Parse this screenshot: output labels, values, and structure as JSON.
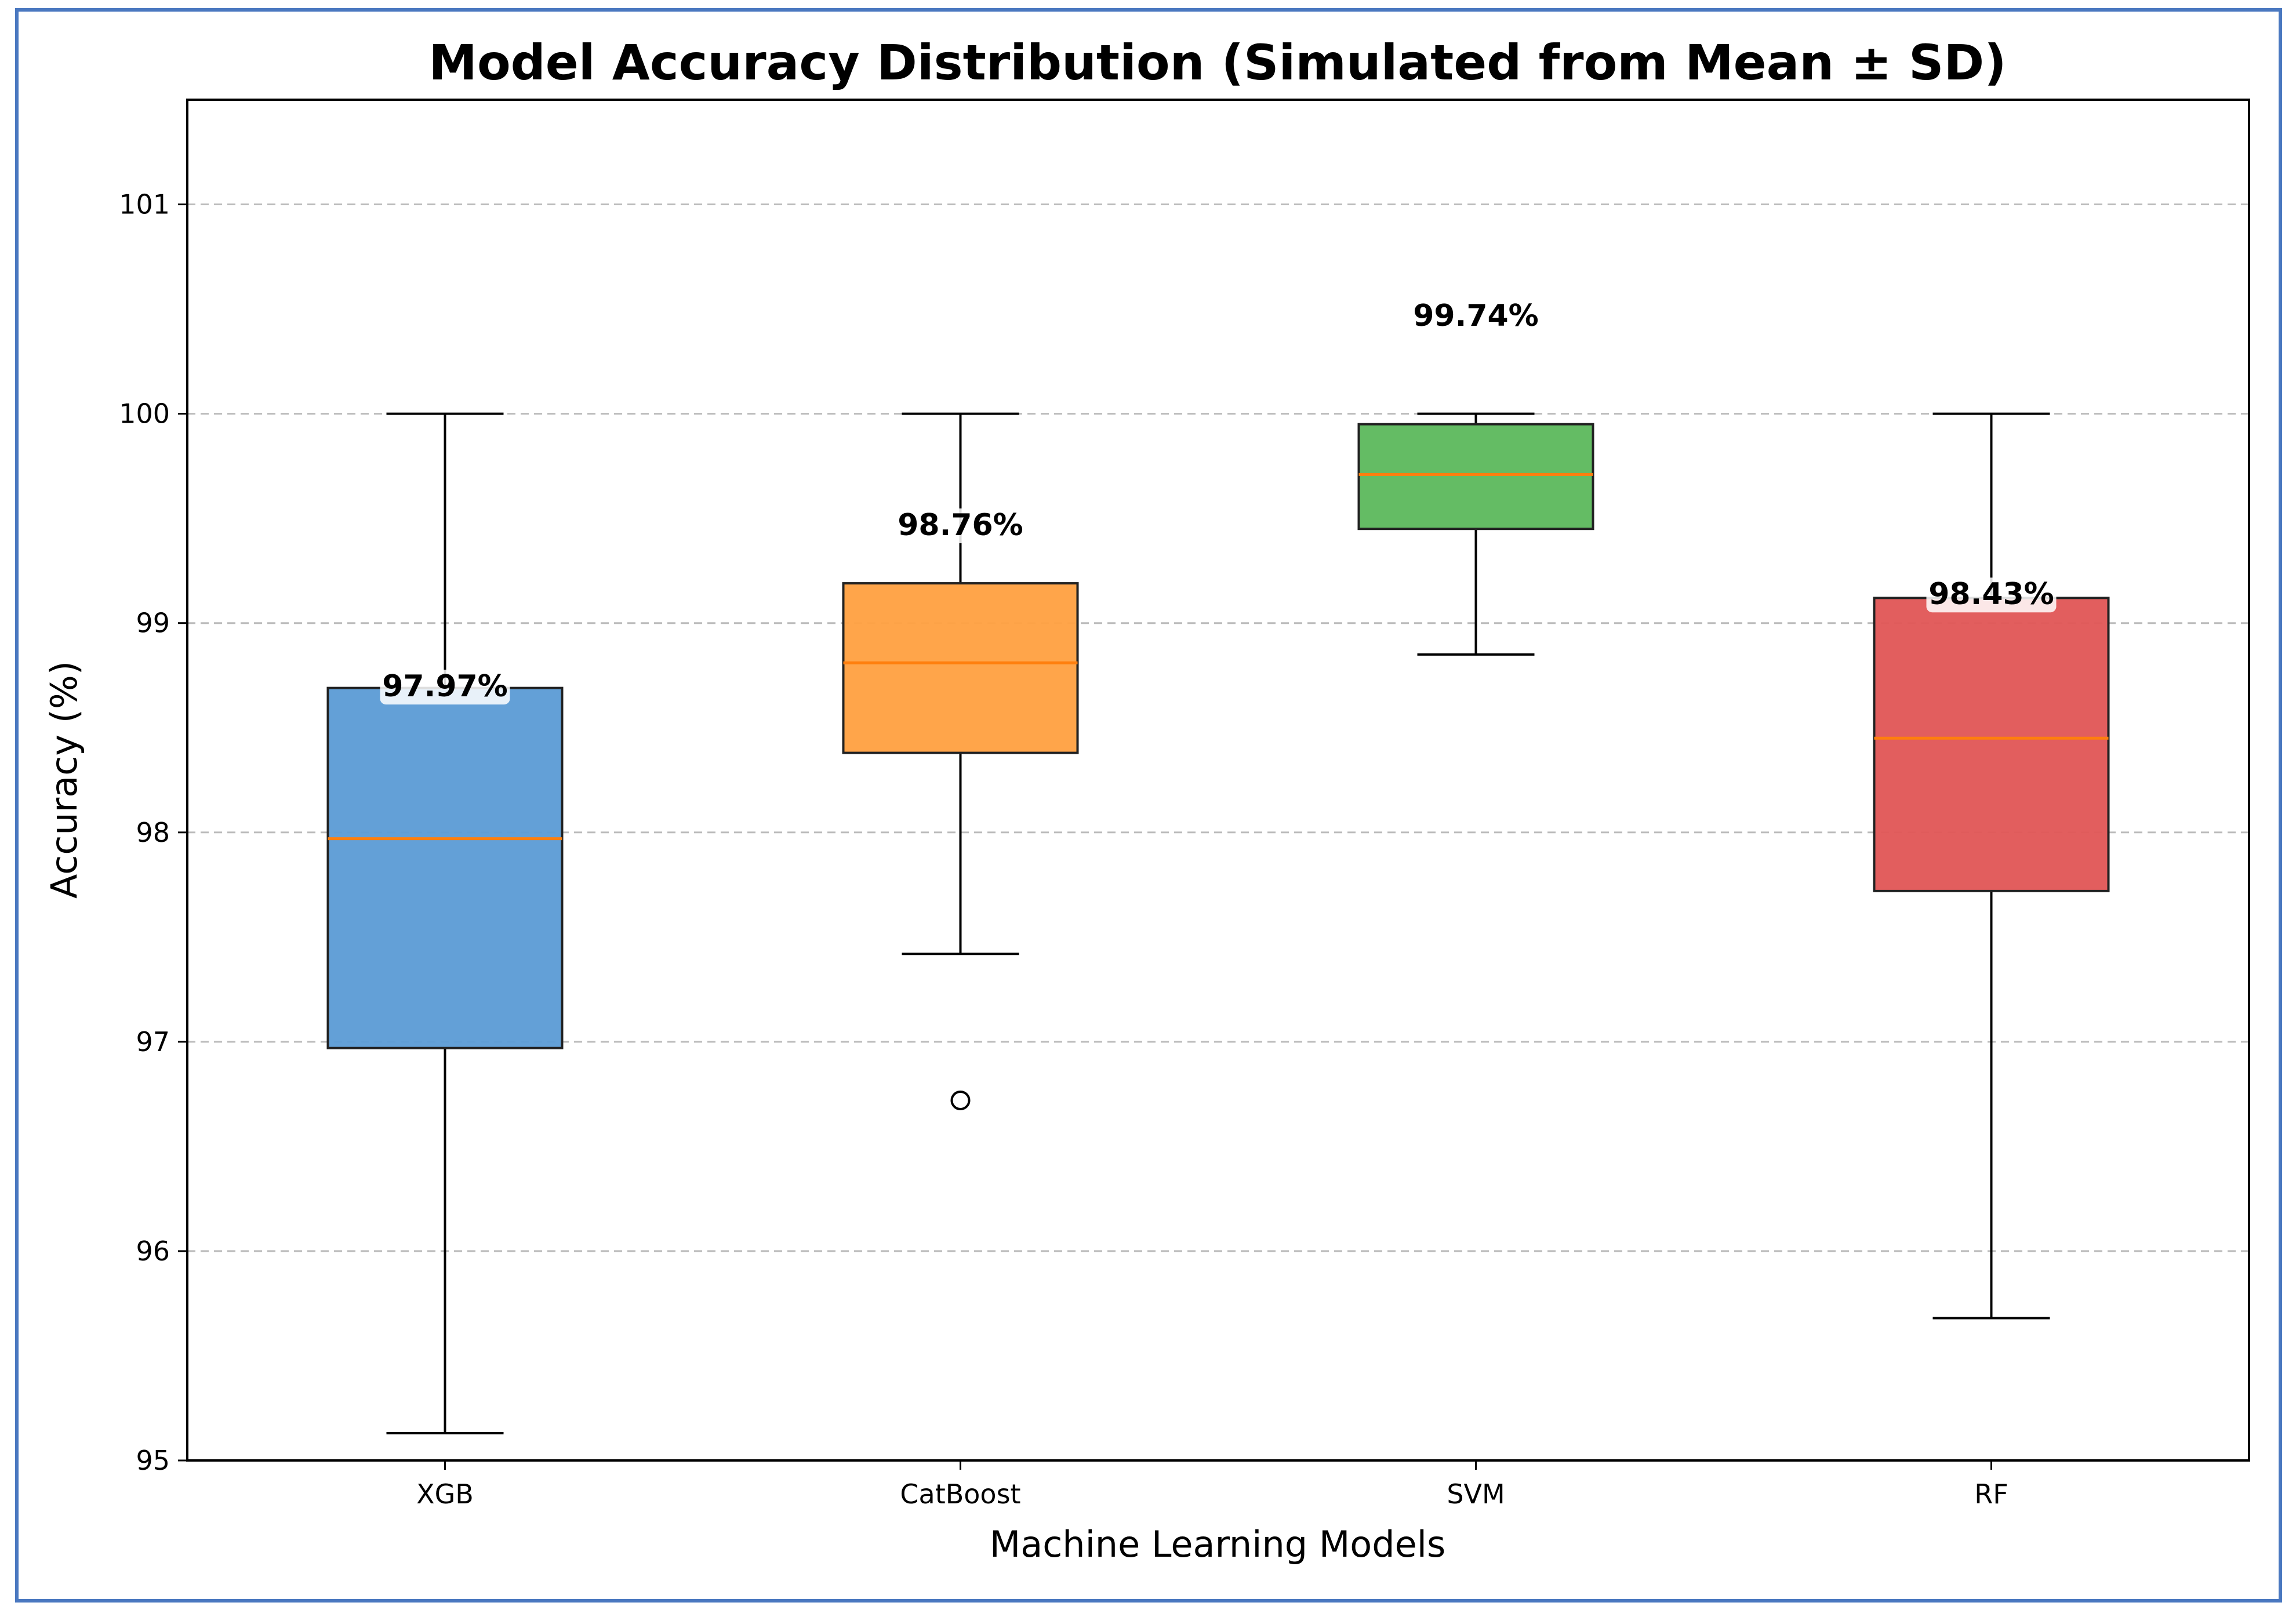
{
  "chart_data": {
    "type": "box",
    "title": "Model Accuracy Distribution (Simulated from Mean ± SD)",
    "xlabel": "Machine Learning Models",
    "ylabel": "Accuracy (%)",
    "ylim": [
      95,
      101.5
    ],
    "yticks": [
      "95",
      "96",
      "97",
      "98",
      "99",
      "100",
      "101"
    ],
    "grid": "y-dashed",
    "categories": [
      "XGB",
      "CatBoost",
      "SVM",
      "RF"
    ],
    "boxes": [
      {
        "category": "XGB",
        "whisker_low": 95.13,
        "q1": 96.97,
        "median": 97.97,
        "q3": 98.69,
        "whisker_high": 100.0,
        "outliers": [],
        "mean_label": "97.97%",
        "mean_label_y": 98.65,
        "color": "#5b9bd5"
      },
      {
        "category": "CatBoost",
        "whisker_low": 97.42,
        "q1": 98.38,
        "median": 98.81,
        "q3": 99.19,
        "whisker_high": 100.0,
        "outliers": [
          96.72
        ],
        "mean_label": "98.76%",
        "mean_label_y": 99.42,
        "color": "#ffa040"
      },
      {
        "category": "SVM",
        "whisker_low": 98.85,
        "q1": 99.45,
        "median": 99.71,
        "q3": 99.95,
        "whisker_high": 100.0,
        "outliers": [],
        "mean_label": "99.74%",
        "mean_label_y": 100.42,
        "color": "#5cb85c"
      },
      {
        "category": "RF",
        "whisker_low": 95.68,
        "q1": 97.72,
        "median": 98.45,
        "q3": 99.12,
        "whisker_high": 100.0,
        "outliers": [],
        "mean_label": "98.43%",
        "mean_label_y": 99.09,
        "color": "#e05555"
      }
    ],
    "median_color": "#ff7f0e"
  }
}
